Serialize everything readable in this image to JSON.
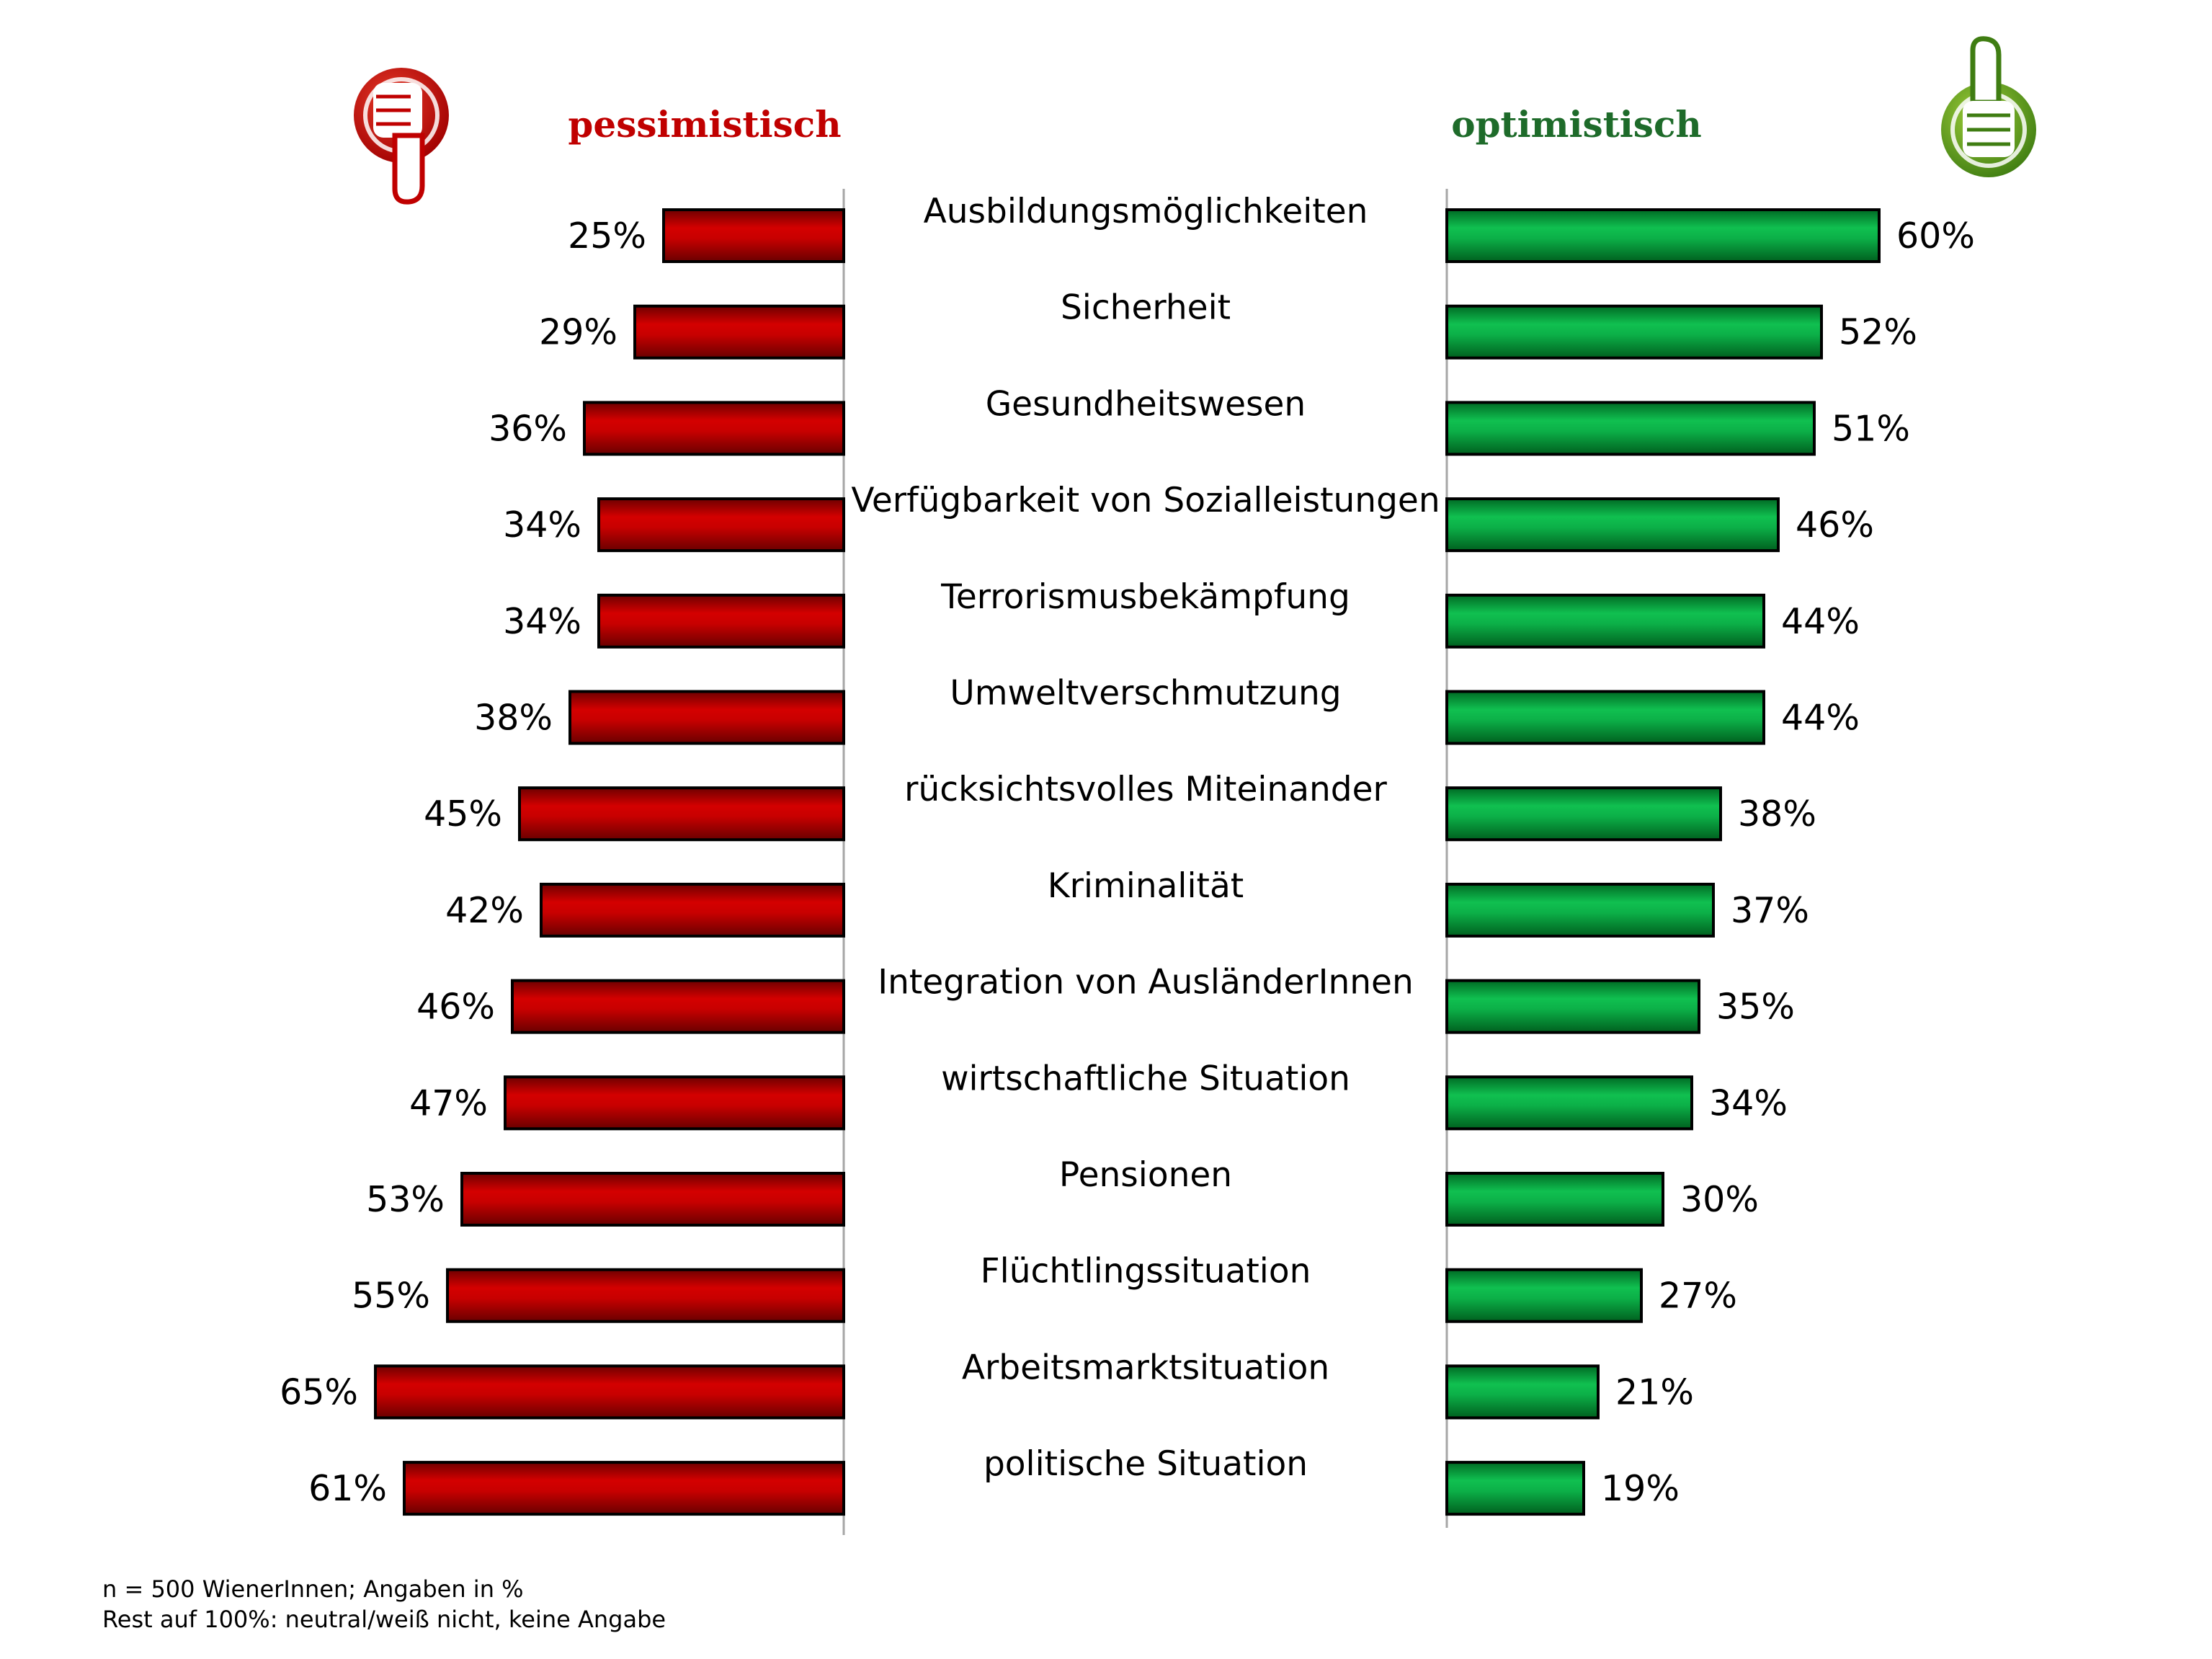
{
  "chart_data": {
    "type": "bar",
    "categories": [
      "Ausbildungsmöglichkeiten",
      "Sicherheit",
      "Gesundheitswesen",
      "Verfügbarkeit von Sozialleistungen",
      "Terrorismusbekämpfung",
      "Umweltverschmutzung",
      "rücksichtsvolles Miteinander",
      "Kriminalität",
      "Integration von AusländerInnen",
      "wirtschaftliche Situation",
      "Pensionen",
      "Flüchtlingssituation",
      "Arbeitsmarktsituation",
      "politische Situation"
    ],
    "series": [
      {
        "name": "pessimistisch",
        "color": "#c00000",
        "values": [
          25,
          29,
          36,
          34,
          34,
          38,
          45,
          42,
          46,
          47,
          53,
          55,
          65,
          61
        ],
        "labels": [
          "25%",
          "29%",
          "36%",
          "34%",
          "34%",
          "38%",
          "45%",
          "42%",
          "46%",
          "47%",
          "53%",
          "55%",
          "65%",
          "61%"
        ]
      },
      {
        "name": "optimistisch",
        "color": "#00a040",
        "values": [
          60,
          52,
          51,
          46,
          44,
          44,
          38,
          37,
          35,
          34,
          30,
          27,
          21,
          19
        ],
        "labels": [
          "60%",
          "52%",
          "51%",
          "46%",
          "44%",
          "44%",
          "38%",
          "37%",
          "35%",
          "34%",
          "30%",
          "27%",
          "21%",
          "19%"
        ]
      }
    ],
    "unit": "%",
    "orientation": "horizontal",
    "layout": "butterfly"
  },
  "icons": {
    "left": "thumbs-down-icon",
    "right": "thumbs-up-icon"
  },
  "colors": {
    "pessimistisch_heading": "#c00000",
    "optimistisch_heading": "#1e6b2a"
  },
  "footnote": {
    "line1": "n = 500 WienerInnen; Angaben in %",
    "line2": "Rest auf 100%: neutral/weiß nicht, keine Angabe"
  }
}
